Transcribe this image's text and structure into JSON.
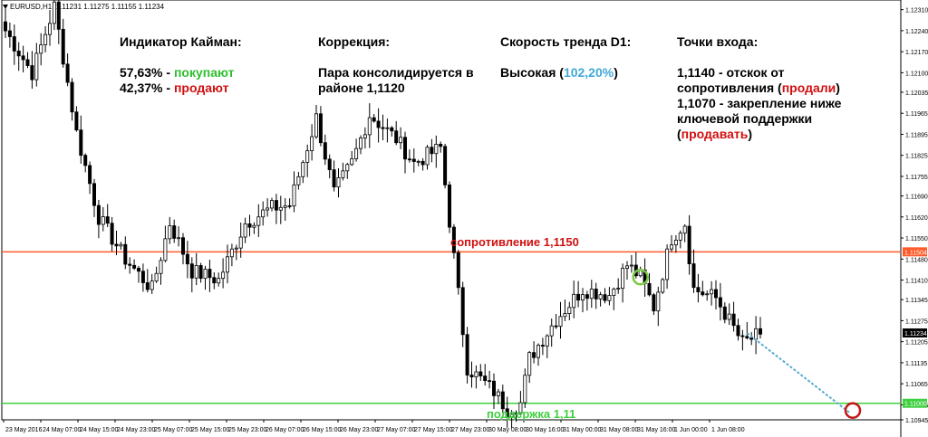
{
  "window": {
    "symbol": "EURUSD,H1",
    "ohlc": "1.11231 1.11275 1.11155 1.11234"
  },
  "panels": {
    "kayman": {
      "title": "Индикатор Кайман:",
      "buy_pct": "57,63%",
      "buy_sep": " - ",
      "buy_word": "покупают",
      "sell_pct": "42,37%",
      "sell_sep": " - ",
      "sell_word": "продают"
    },
    "correction": {
      "title": "Коррекция:",
      "line1": "Пара консолидируется в",
      "line2": "районе 1,1120"
    },
    "trend": {
      "title": "Скорость тренда D1:",
      "value": "Высокая",
      "open": " (",
      "pct": "102,20%",
      "close": ")"
    },
    "entry": {
      "title": "Точки входа:",
      "l1": "1,1140 - отскок от",
      "l2a": "сопротивления (",
      "l2b": "продали",
      "l2c": ")",
      "l3": "1,1070 - закрепление ниже",
      "l4": "ключевой поддержки",
      "l5a": "(",
      "l5b": "продавать",
      "l5c": ")"
    }
  },
  "chart_data": {
    "type": "candlestick",
    "symbol": "EURUSD",
    "timeframe": "H1",
    "ylim": [
      1.10945,
      1.1233
    ],
    "y_ticks": [
      "1.12310",
      "1.12240",
      "1.12170",
      "1.12100",
      "1.12035",
      "1.11965",
      "1.11895",
      "1.11825",
      "1.11755",
      "1.11690",
      "1.11620",
      "1.11550",
      "1.11480",
      "1.11410",
      "1.11345",
      "1.11275",
      "1.11205",
      "1.11135",
      "1.11065",
      "1.10995",
      "1.10945"
    ],
    "x_ticks": [
      "23 May 2016",
      "24 May 07:00",
      "24 May 15:00",
      "24 May 23:00",
      "25 May 07:00",
      "25 May 15:00",
      "25 May 23:00",
      "26 May 07:00",
      "26 May 15:00",
      "26 May 23:00",
      "27 May 07:00",
      "27 May 15:00",
      "27 May 23:00",
      "30 May 08:00",
      "30 May 16:00",
      "31 May 00:00",
      "31 May 08:00",
      "31 May 16:00",
      "1 Jun 00:00",
      "1 Jun 08:00"
    ],
    "price_badges": [
      {
        "value": "1.11504",
        "color": "#ff5a2a"
      },
      {
        "value": "1.11234",
        "color": "#000000"
      },
      {
        "value": "1.11000",
        "color": "#3fd03f"
      }
    ],
    "levels": [
      {
        "name": "resistance",
        "label": "сопротивление 1,1150",
        "price": 1.11504,
        "color": "#ff5a2a"
      },
      {
        "name": "support",
        "label": "поддержка 1,11",
        "price": 1.11,
        "color": "#3fd03f"
      }
    ],
    "projection": {
      "from": [
        167,
        1.11234
      ],
      "to": [
        190,
        1.1097
      ],
      "color": "#5aaad2"
    },
    "marker_entry": {
      "bar": 143,
      "price": 1.1142,
      "color": "#7ac943"
    },
    "marker_target": {
      "bar": 190,
      "price": 1.1097,
      "color": "#c01818"
    },
    "pivots": [
      [
        0,
        1.1224
      ],
      [
        6,
        1.121
      ],
      [
        11,
        1.1232
      ],
      [
        16,
        1.119
      ],
      [
        21,
        1.1162
      ],
      [
        27,
        1.1148
      ],
      [
        33,
        1.1138
      ],
      [
        37,
        1.116
      ],
      [
        42,
        1.1144
      ],
      [
        48,
        1.1141
      ],
      [
        54,
        1.116
      ],
      [
        60,
        1.1165
      ],
      [
        64,
        1.1166
      ],
      [
        70,
        1.1195
      ],
      [
        74,
        1.117
      ],
      [
        78,
        1.118
      ],
      [
        82,
        1.1196
      ],
      [
        88,
        1.1188
      ],
      [
        92,
        1.118
      ],
      [
        98,
        1.1185
      ],
      [
        104,
        1.1112
      ],
      [
        110,
        1.1104
      ],
      [
        113,
        1.1098
      ],
      [
        116,
        1.11
      ],
      [
        118,
        1.1115
      ],
      [
        124,
        1.1128
      ],
      [
        130,
        1.1138
      ],
      [
        136,
        1.1136
      ],
      [
        140,
        1.1146
      ],
      [
        143,
        1.1142
      ],
      [
        146,
        1.1132
      ],
      [
        150,
        1.1155
      ],
      [
        153,
        1.116
      ],
      [
        155,
        1.1138
      ],
      [
        160,
        1.1135
      ],
      [
        166,
        1.112
      ],
      [
        170,
        1.1123
      ]
    ]
  }
}
